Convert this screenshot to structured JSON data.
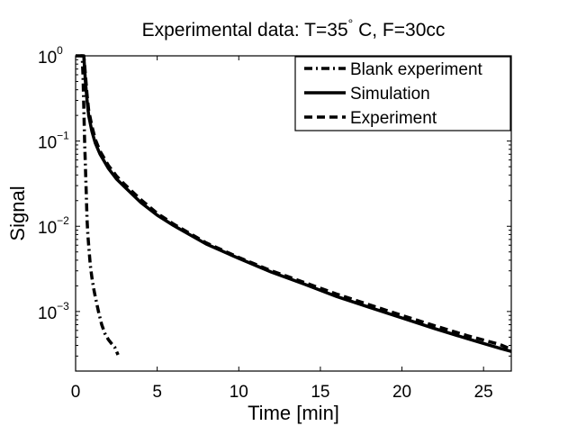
{
  "chart_data": {
    "type": "line",
    "title": "Experimental data: T=35° C, F=30cc",
    "title_parts": {
      "main": "Experimental data: T=35",
      "sup": "°",
      "rest": " C, F=30cc"
    },
    "xlabel": "Time [min]",
    "ylabel": "Signal",
    "xlim": [
      0,
      26.7
    ],
    "ylim": [
      0.0002,
      1
    ],
    "yscale": "log",
    "grid": false,
    "legend_position": "top-right",
    "x_ticks": [
      {
        "value": 0,
        "label": "0"
      },
      {
        "value": 5,
        "label": "5"
      },
      {
        "value": 10,
        "label": "10"
      },
      {
        "value": 15,
        "label": "15"
      },
      {
        "value": 20,
        "label": "20"
      },
      {
        "value": 25,
        "label": "25"
      }
    ],
    "y_ticks": [
      {
        "value": 1,
        "base": "10",
        "exp": "0"
      },
      {
        "value": 0.1,
        "base": "10",
        "exp": "−1"
      },
      {
        "value": 0.01,
        "base": "10",
        "exp": "−2"
      },
      {
        "value": 0.001,
        "base": "10",
        "exp": "−3"
      }
    ],
    "series": [
      {
        "name": "Blank experiment",
        "style": "dashdot",
        "color": "#000000",
        "x": [
          0,
          0.4,
          0.45,
          0.5,
          0.55,
          0.6,
          0.65,
          0.7,
          0.75,
          0.8,
          0.9,
          1.0,
          1.1,
          1.2,
          1.4,
          1.6,
          1.8,
          2.0,
          2.2,
          2.4,
          2.6
        ],
        "y": [
          1,
          1,
          0.6,
          0.25,
          0.1,
          0.05,
          0.025,
          0.012,
          0.008,
          0.006,
          0.0035,
          0.0025,
          0.0019,
          0.0015,
          0.001,
          0.0007,
          0.00055,
          0.00047,
          0.00042,
          0.00038,
          0.00031
        ]
      },
      {
        "name": "Simulation",
        "style": "solid",
        "color": "#000000",
        "x": [
          0.5,
          0.6,
          0.7,
          0.8,
          1.0,
          1.2,
          1.5,
          2.0,
          2.5,
          3,
          4,
          5,
          6,
          8,
          10,
          12,
          14,
          16,
          18,
          20,
          22,
          24,
          26,
          26.7
        ],
        "y": [
          1,
          0.5,
          0.3,
          0.2,
          0.13,
          0.095,
          0.07,
          0.048,
          0.036,
          0.029,
          0.019,
          0.0135,
          0.0102,
          0.0062,
          0.0042,
          0.0029,
          0.0021,
          0.0015,
          0.00112,
          0.00084,
          0.00063,
          0.00048,
          0.00037,
          0.00034
        ]
      },
      {
        "name": "Experiment",
        "style": "dashed",
        "color": "#000000",
        "x": [
          0.3,
          0.5,
          0.6,
          0.7,
          0.8,
          1.0,
          1.2,
          1.5,
          2.0,
          2.5,
          3,
          4,
          5,
          6,
          8,
          10,
          12,
          14,
          16,
          18,
          20,
          22,
          24,
          26,
          26.7
        ],
        "y": [
          1,
          1,
          0.6,
          0.35,
          0.23,
          0.15,
          0.105,
          0.076,
          0.052,
          0.039,
          0.031,
          0.0205,
          0.0142,
          0.0106,
          0.0064,
          0.0043,
          0.003,
          0.0022,
          0.0016,
          0.0012,
          0.0009,
          0.00068,
          0.00052,
          0.00041,
          0.00036
        ]
      }
    ]
  }
}
